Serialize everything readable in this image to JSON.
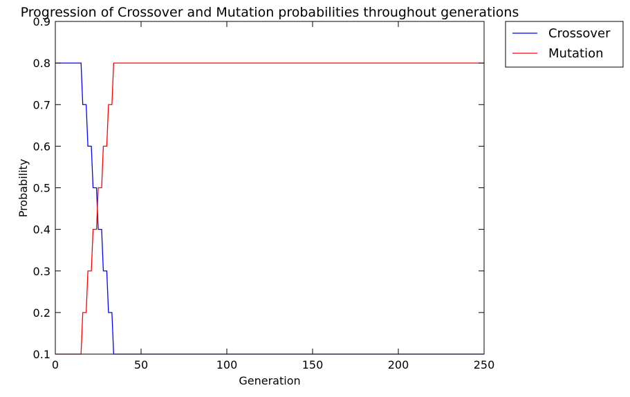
{
  "chart_data": {
    "type": "line",
    "title": "Progression of Crossover and Mutation probabilities throughout generations",
    "xlabel": "Generation",
    "ylabel": "Probability",
    "xlim": [
      0,
      250
    ],
    "ylim": [
      0.1,
      0.9
    ],
    "xticks": [
      0,
      50,
      100,
      150,
      200,
      250
    ],
    "yticks": [
      0.1,
      0.2,
      0.3,
      0.4,
      0.5,
      0.6,
      0.7,
      0.8,
      0.9
    ],
    "xtick_labels": [
      "0",
      "50",
      "100",
      "150",
      "200",
      "250"
    ],
    "ytick_labels": [
      "0.1",
      "0.2",
      "0.3",
      "0.4",
      "0.5",
      "0.6",
      "0.7",
      "0.8",
      "0.9"
    ],
    "grid": false,
    "legend_position": "outside-top-right",
    "series": [
      {
        "name": "Crossover",
        "color": "#0000ff",
        "x": [
          0,
          15,
          16,
          18,
          19,
          21,
          22,
          24,
          25,
          27,
          28,
          30,
          31,
          33,
          34,
          250
        ],
        "y": [
          0.8,
          0.8,
          0.7,
          0.7,
          0.6,
          0.6,
          0.5,
          0.5,
          0.4,
          0.4,
          0.3,
          0.3,
          0.2,
          0.2,
          0.1,
          0.1
        ]
      },
      {
        "name": "Mutation",
        "color": "#ff0000",
        "x": [
          0,
          15,
          16,
          18,
          19,
          21,
          22,
          24,
          25,
          27,
          28,
          30,
          31,
          33,
          34,
          250
        ],
        "y": [
          0.1,
          0.1,
          0.2,
          0.2,
          0.3,
          0.3,
          0.4,
          0.4,
          0.5,
          0.5,
          0.6,
          0.6,
          0.7,
          0.7,
          0.8,
          0.8
        ]
      }
    ]
  }
}
